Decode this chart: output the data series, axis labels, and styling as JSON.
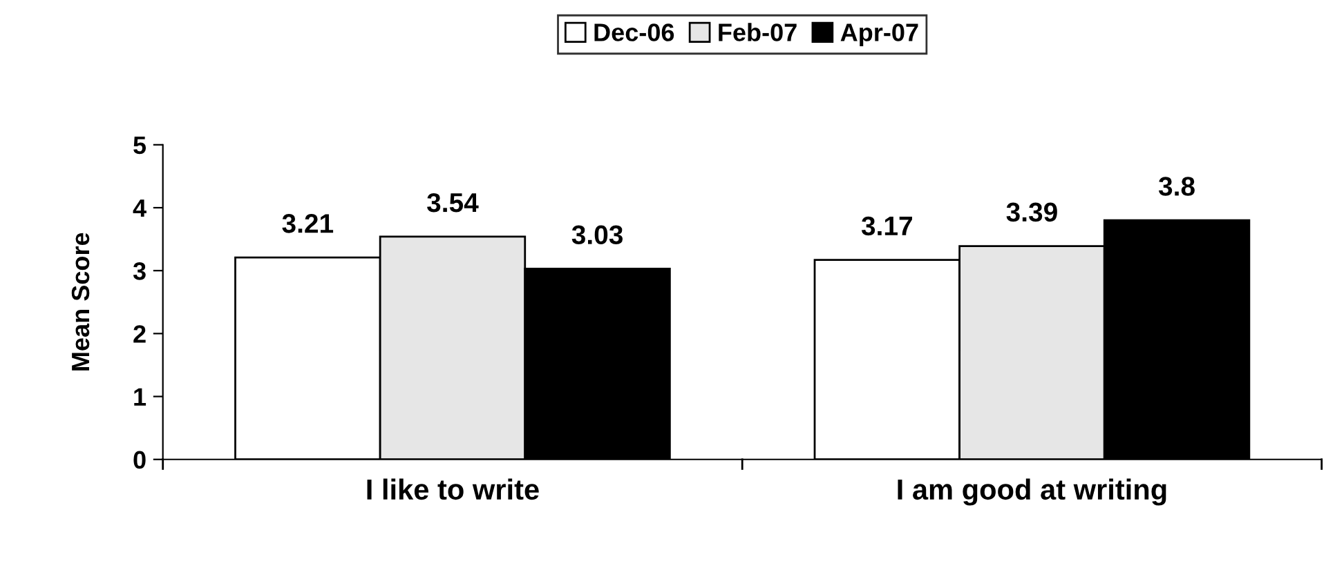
{
  "chart_data": {
    "type": "bar",
    "ylabel": "Mean Score",
    "categories": [
      "I like to write",
      "I am good at writing"
    ],
    "series": [
      {
        "name": "Dec-06",
        "color": "#ffffff",
        "values": [
          3.21,
          3.17
        ]
      },
      {
        "name": "Feb-07",
        "color": "#e6e6e6",
        "values": [
          3.54,
          3.39
        ]
      },
      {
        "name": "Apr-07",
        "color": "#000000",
        "values": [
          3.03,
          3.8
        ]
      }
    ],
    "ylim": [
      0,
      5
    ],
    "yticks": [
      0,
      1,
      2,
      3,
      4,
      5
    ],
    "grid": false,
    "legend": "top",
    "data_labels": true
  }
}
